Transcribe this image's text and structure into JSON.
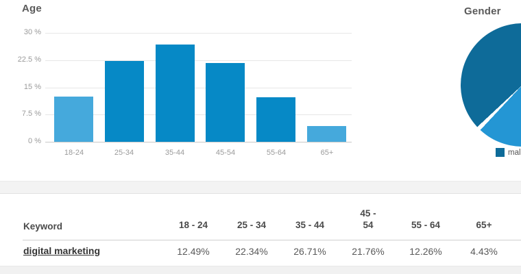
{
  "chart_data": [
    {
      "type": "bar",
      "title": "Age",
      "categories": [
        "18-24",
        "25-34",
        "35-44",
        "45-54",
        "55-64",
        "65+"
      ],
      "values": [
        12.49,
        22.34,
        26.71,
        21.76,
        12.26,
        4.43
      ],
      "y_ticks": [
        "30 %",
        "22.5 %",
        "15 %",
        "7.5 %",
        "0 %"
      ],
      "ylim": [
        0,
        30
      ],
      "grid": true,
      "unit": "%",
      "bar_colors": [
        "#45a9dc",
        "#0689c6",
        "#0689c6",
        "#0689c6",
        "#0689c6",
        "#45a9dc"
      ]
    },
    {
      "type": "pie",
      "title": "Gender",
      "legend": [
        "male"
      ],
      "legend_position": "bottom",
      "slices": [
        {
          "label": "male",
          "color": "#0e6b99",
          "approx_pct": 65
        },
        {
          "label": "",
          "color": "#2496d4",
          "approx_pct": 35
        }
      ],
      "divider_color": "#ffffff"
    },
    {
      "type": "table",
      "columns": [
        "Keyword",
        "18 - 24",
        "25 - 34",
        "35 - 44",
        "45 - 54",
        "55 - 64",
        "65+"
      ],
      "rows": [
        [
          "digital marketing",
          "12.49%",
          "22.34%",
          "26.71%",
          "21.76%",
          "12.26%",
          "4.43%"
        ]
      ]
    }
  ],
  "colors": {
    "bar_primary": "#0689c6",
    "bar_accent": "#45a9dc",
    "pie_male": "#0e6b99",
    "pie_other": "#2496d4",
    "band_bg": "#f3f3f3"
  }
}
